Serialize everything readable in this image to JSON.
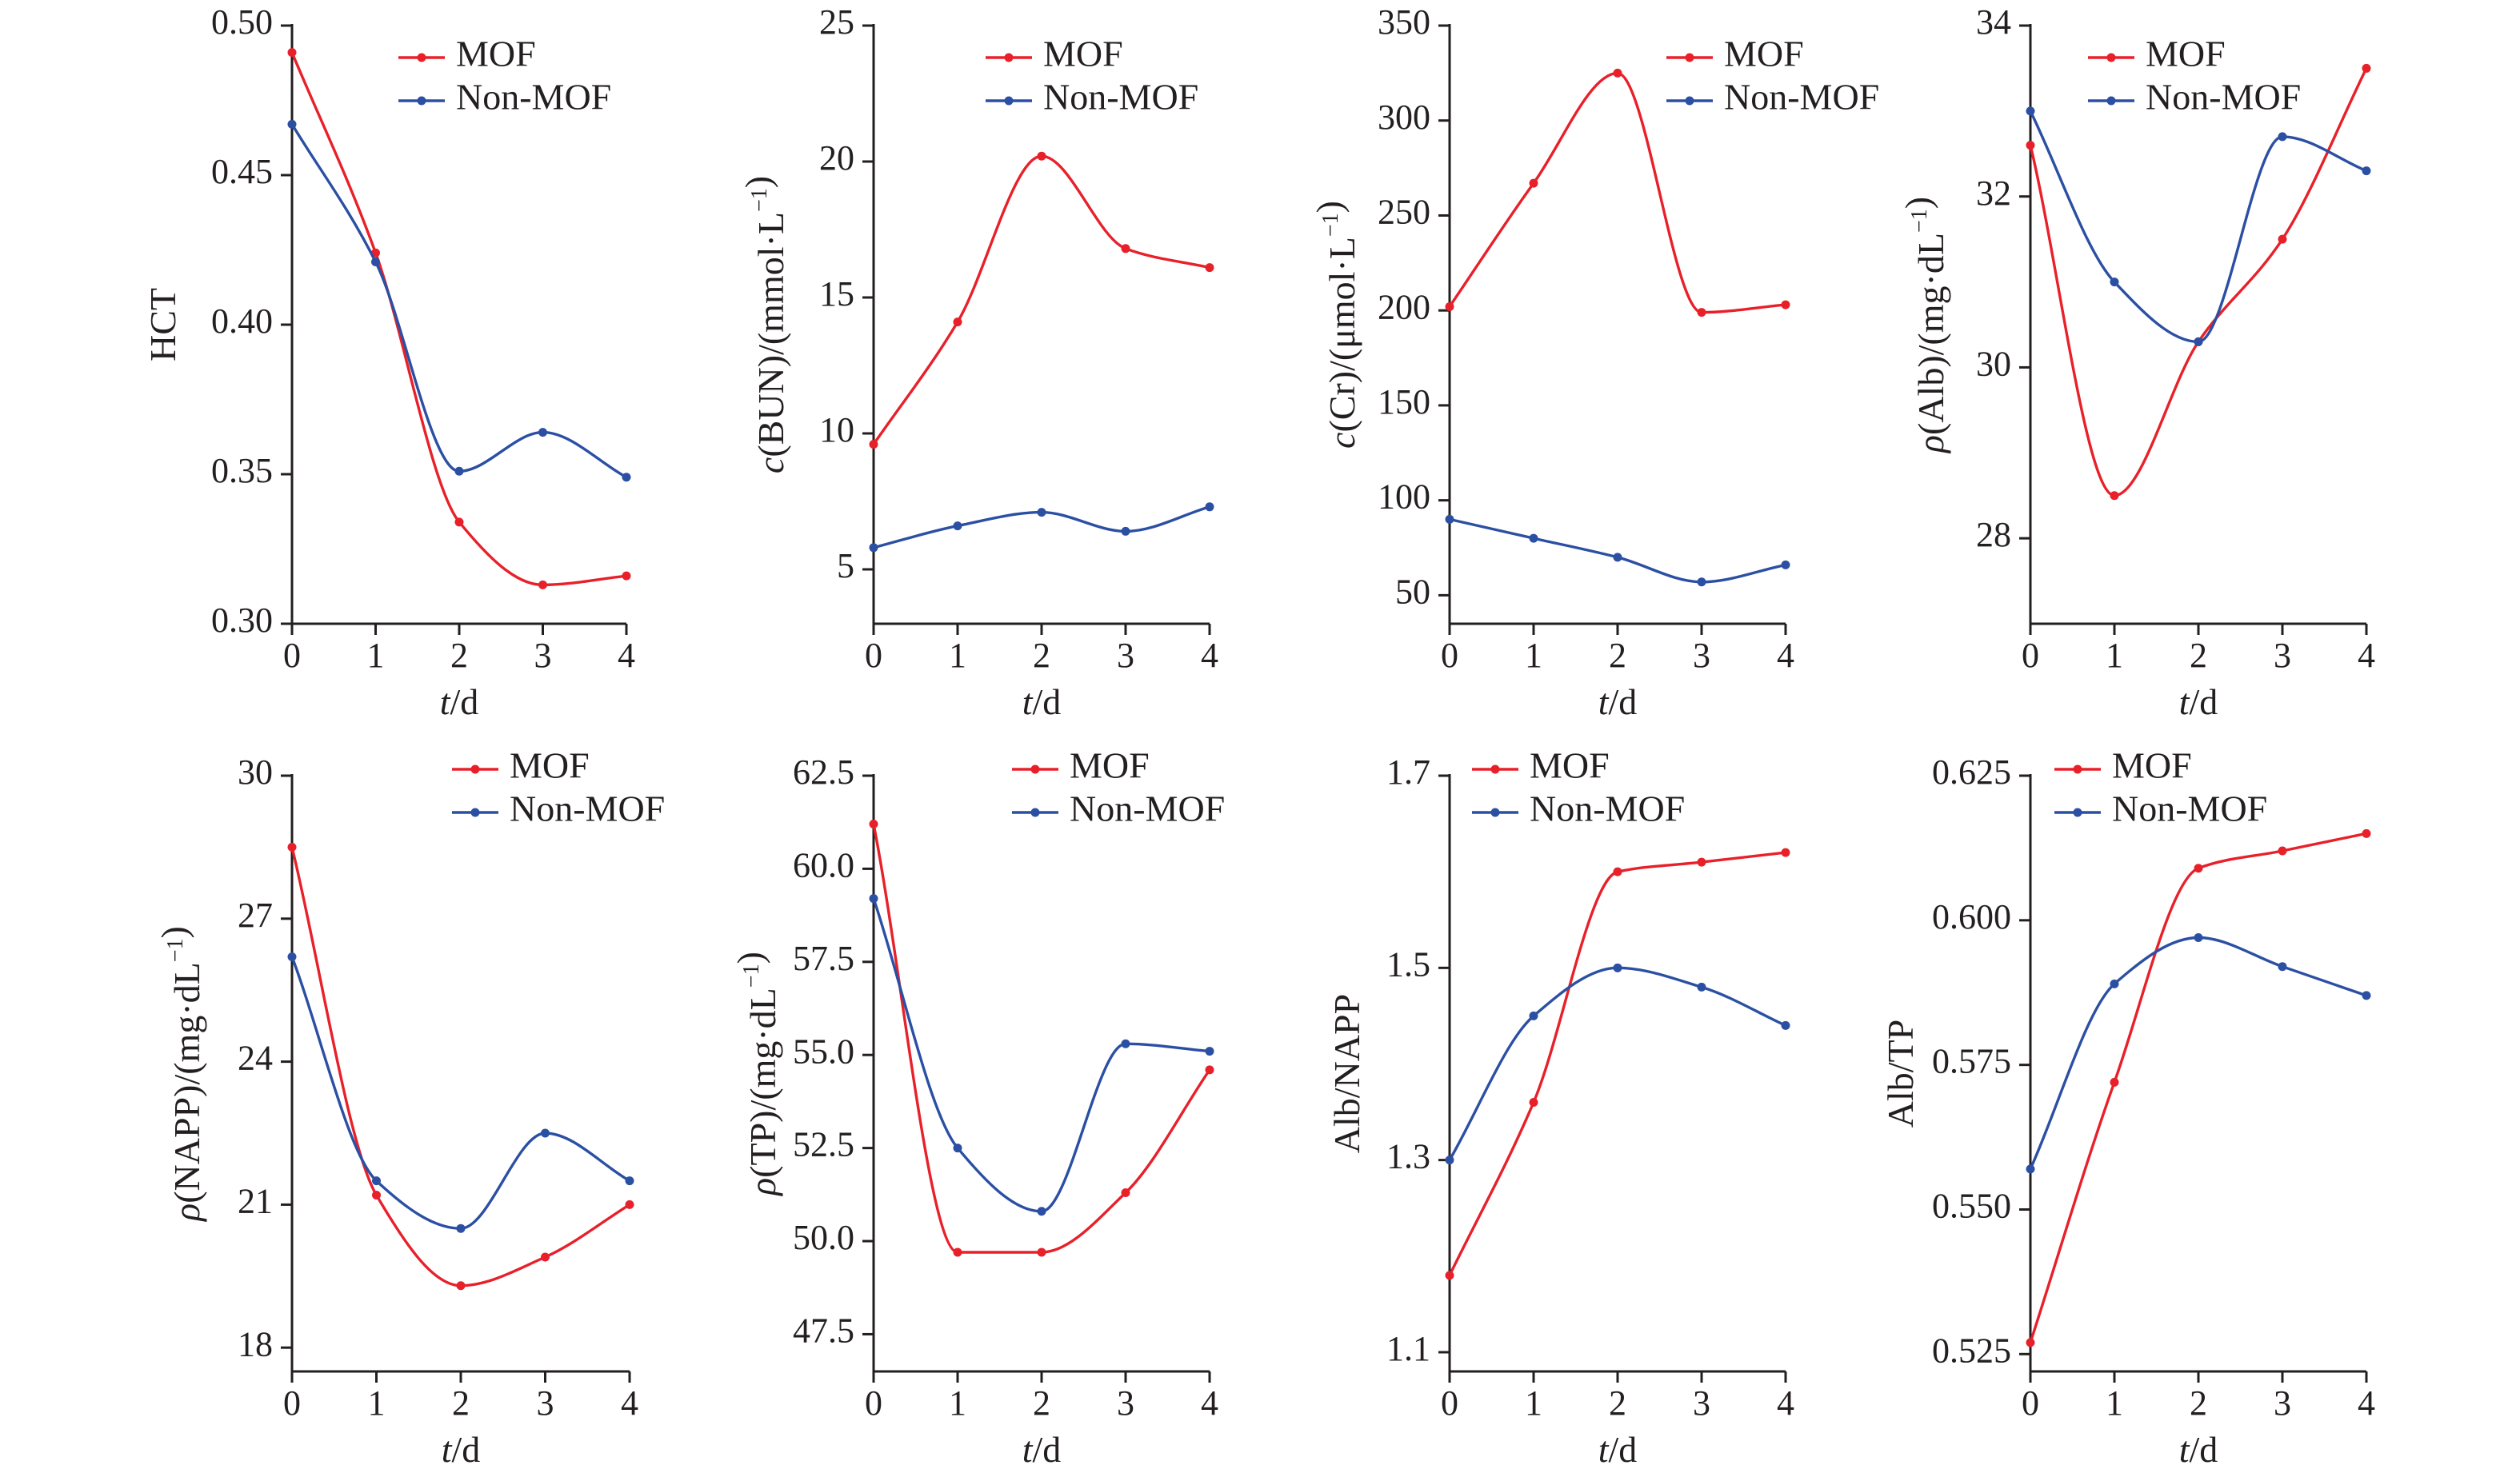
{
  "colors": {
    "mof": "#e8202a",
    "nonmof": "#2b4fa3",
    "axis": "#231f20"
  },
  "chart_data": [
    {
      "type": "line",
      "ylabel": "HCT",
      "xlabel": "t/d",
      "x": [
        0,
        1,
        2,
        3,
        4
      ],
      "xticks": [
        "0",
        "1",
        "2",
        "3",
        "4"
      ],
      "ylim": [
        0.3,
        0.5
      ],
      "yticks": [
        "0.30",
        "0.35",
        "0.40",
        "0.45",
        "0.50"
      ],
      "yticks_values": [
        0.3,
        0.35,
        0.4,
        0.45,
        0.5
      ],
      "legend": [
        "MOF",
        "Non-MOF"
      ],
      "legend_position": "top-center",
      "series": [
        {
          "name": "MOF",
          "color": "#e8202a",
          "values": [
            0.491,
            0.424,
            0.334,
            0.313,
            0.316
          ]
        },
        {
          "name": "Non-MOF",
          "color": "#2b4fa3",
          "values": [
            0.467,
            0.421,
            0.351,
            0.364,
            0.349
          ]
        }
      ]
    },
    {
      "type": "line",
      "ylabel": "c(BUN)/(mmol·L⁻¹)",
      "xlabel": "t/d",
      "x": [
        0,
        1,
        2,
        3,
        4
      ],
      "xticks": [
        "0",
        "1",
        "2",
        "3",
        "4"
      ],
      "ylim": [
        3,
        25
      ],
      "yticks": [
        "5",
        "10",
        "15",
        "20",
        "25"
      ],
      "yticks_values": [
        5,
        10,
        15,
        20,
        25
      ],
      "legend": [
        "MOF",
        "Non-MOF"
      ],
      "legend_position": "top-right",
      "series": [
        {
          "name": "MOF",
          "color": "#e8202a",
          "values": [
            9.6,
            14.1,
            20.2,
            16.8,
            16.1
          ]
        },
        {
          "name": "Non-MOF",
          "color": "#2b4fa3",
          "values": [
            5.8,
            6.6,
            7.1,
            6.4,
            7.3
          ]
        }
      ]
    },
    {
      "type": "line",
      "ylabel": "c(Cr)/(μmol·L⁻¹)",
      "xlabel": "t/d",
      "x": [
        0,
        1,
        2,
        3,
        4
      ],
      "xticks": [
        "0",
        "1",
        "2",
        "3",
        "4"
      ],
      "ylim": [
        35,
        350
      ],
      "yticks": [
        "50",
        "100",
        "150",
        "200",
        "250",
        "300",
        "350"
      ],
      "yticks_values": [
        50,
        100,
        150,
        200,
        250,
        300,
        350
      ],
      "legend": [
        "MOF",
        "Non-MOF"
      ],
      "legend_position": "top-right",
      "series": [
        {
          "name": "MOF",
          "color": "#e8202a",
          "values": [
            202,
            267,
            325,
            199,
            203
          ]
        },
        {
          "name": "Non-MOF",
          "color": "#2b4fa3",
          "values": [
            90,
            80,
            70,
            57,
            66
          ]
        }
      ]
    },
    {
      "type": "line",
      "ylabel": "ρ(Alb)/(mg·dL⁻¹)",
      "xlabel": "t/d",
      "x": [
        0,
        1,
        2,
        3,
        4
      ],
      "xticks": [
        "0",
        "1",
        "2",
        "3",
        "4"
      ],
      "ylim": [
        27,
        34
      ],
      "yticks": [
        "28",
        "30",
        "32",
        "34"
      ],
      "yticks_values": [
        28,
        30,
        32,
        34
      ],
      "legend": [
        "MOF",
        "Non-MOF"
      ],
      "legend_position": "top-right",
      "series": [
        {
          "name": "MOF",
          "color": "#e8202a",
          "values": [
            32.6,
            28.5,
            30.3,
            31.5,
            33.5
          ]
        },
        {
          "name": "Non-MOF",
          "color": "#2b4fa3",
          "values": [
            33.0,
            31.0,
            30.3,
            32.7,
            32.3
          ]
        }
      ]
    },
    {
      "type": "line",
      "ylabel": "ρ(NAPP)/(mg·dL⁻¹)",
      "xlabel": "t/d",
      "x": [
        0,
        1,
        2,
        3,
        4
      ],
      "xticks": [
        "0",
        "1",
        "2",
        "3",
        "4"
      ],
      "ylim": [
        17.5,
        30
      ],
      "yticks": [
        "18",
        "21",
        "24",
        "27",
        "30"
      ],
      "yticks_values": [
        18,
        21,
        24,
        27,
        30
      ],
      "legend": [
        "MOF",
        "Non-MOF"
      ],
      "legend_position": "top-right",
      "series": [
        {
          "name": "MOF",
          "color": "#e8202a",
          "values": [
            28.5,
            21.2,
            19.3,
            19.9,
            21.0
          ]
        },
        {
          "name": "Non-MOF",
          "color": "#2b4fa3",
          "values": [
            26.2,
            21.5,
            20.5,
            22.5,
            21.5
          ]
        }
      ]
    },
    {
      "type": "line",
      "ylabel": "ρ(TP)/(mg·dL⁻¹)",
      "xlabel": "t/d",
      "x": [
        0,
        1,
        2,
        3,
        4
      ],
      "xticks": [
        "0",
        "1",
        "2",
        "3",
        "4"
      ],
      "ylim": [
        46.5,
        62.5
      ],
      "yticks": [
        "47.5",
        "50.0",
        "52.5",
        "55.0",
        "57.5",
        "60.0",
        "62.5"
      ],
      "yticks_values": [
        47.5,
        50.0,
        52.5,
        55.0,
        57.5,
        60.0,
        62.5
      ],
      "legend": [
        "MOF",
        "Non-MOF"
      ],
      "legend_position": "top-right",
      "series": [
        {
          "name": "MOF",
          "color": "#e8202a",
          "values": [
            61.2,
            49.7,
            49.7,
            51.3,
            54.6
          ]
        },
        {
          "name": "Non-MOF",
          "color": "#2b4fa3",
          "values": [
            59.2,
            52.5,
            50.8,
            55.3,
            55.1
          ]
        }
      ]
    },
    {
      "type": "line",
      "ylabel": "Alb/NAPP",
      "xlabel": "t/d",
      "x": [
        0,
        1,
        2,
        3,
        4
      ],
      "xticks": [
        "0",
        "1",
        "2",
        "3",
        "4"
      ],
      "ylim": [
        1.08,
        1.7
      ],
      "yticks": [
        "1.1",
        "1.3",
        "1.5",
        "1.7"
      ],
      "yticks_values": [
        1.1,
        1.3,
        1.5,
        1.7
      ],
      "legend": [
        "MOF",
        "Non-MOF"
      ],
      "legend_position": "top-left",
      "series": [
        {
          "name": "MOF",
          "color": "#e8202a",
          "values": [
            1.18,
            1.36,
            1.6,
            1.61,
            1.62
          ]
        },
        {
          "name": "Non-MOF",
          "color": "#2b4fa3",
          "values": [
            1.3,
            1.45,
            1.5,
            1.48,
            1.44
          ]
        }
      ]
    },
    {
      "type": "line",
      "ylabel": "Alb/TP",
      "xlabel": "t/d",
      "x": [
        0,
        1,
        2,
        3,
        4
      ],
      "xticks": [
        "0",
        "1",
        "2",
        "3",
        "4"
      ],
      "ylim": [
        0.522,
        0.625
      ],
      "yticks": [
        "0.525",
        "0.550",
        "0.575",
        "0.600",
        "0.625"
      ],
      "yticks_values": [
        0.525,
        0.55,
        0.575,
        0.6,
        0.625
      ],
      "legend": [
        "MOF",
        "Non-MOF"
      ],
      "legend_position": "top-left",
      "series": [
        {
          "name": "MOF",
          "color": "#e8202a",
          "values": [
            0.527,
            0.572,
            0.609,
            0.612,
            0.615
          ]
        },
        {
          "name": "Non-MOF",
          "color": "#2b4fa3",
          "values": [
            0.557,
            0.589,
            0.597,
            0.592,
            0.587
          ]
        }
      ]
    }
  ]
}
